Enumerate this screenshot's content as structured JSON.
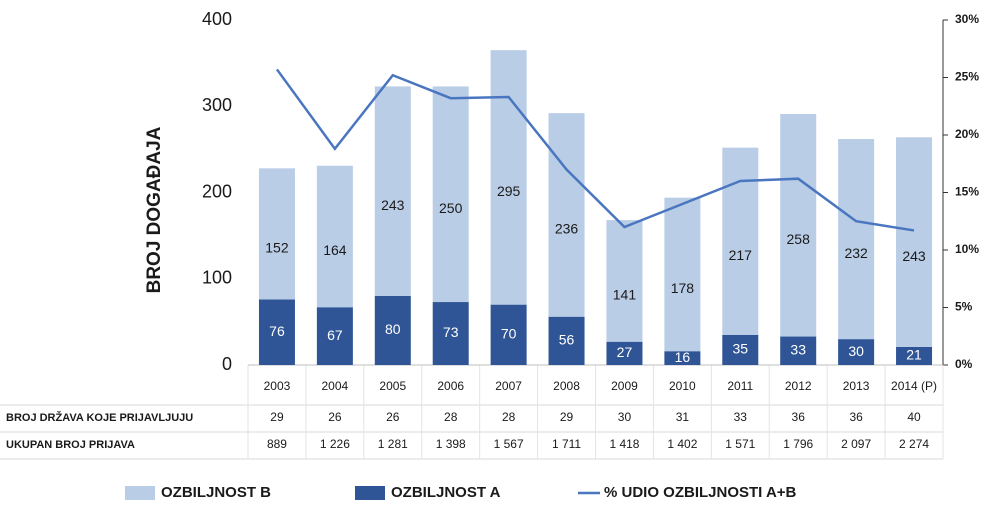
{
  "chart_data": {
    "type": "stacked-bar-line",
    "y_label": "BROJ DOGAĐAJA",
    "categories": [
      "2003",
      "2004",
      "2005",
      "2006",
      "2007",
      "2008",
      "2009",
      "2010",
      "2011",
      "2012",
      "2013",
      "2014 (P)"
    ],
    "series": [
      {
        "name": "OZBILJNOST A",
        "color": "#2f5597",
        "values": [
          76,
          67,
          80,
          73,
          70,
          56,
          27,
          16,
          35,
          33,
          30,
          21
        ]
      },
      {
        "name": "OZBILJNOST B",
        "color": "#b9cde6",
        "values": [
          152,
          164,
          243,
          250,
          295,
          236,
          141,
          178,
          217,
          258,
          232,
          243
        ]
      },
      {
        "name": "% UDIO OZBILJNOSTI A+B",
        "color": "#4a76c0",
        "axis": "y2",
        "values": [
          25.7,
          18.8,
          25.2,
          23.2,
          23.3,
          17.0,
          12.0,
          14.0,
          16.0,
          16.2,
          12.5,
          11.7
        ]
      }
    ],
    "ylim": [
      0,
      400
    ],
    "yticks": [
      0,
      100,
      200,
      300,
      400
    ],
    "y2lim": [
      0,
      30
    ],
    "y2ticks": [
      {
        "value": 0,
        "label": "0%"
      },
      {
        "value": 5,
        "label": "5%"
      },
      {
        "value": 10,
        "label": "10%"
      },
      {
        "value": 15,
        "label": "15%"
      },
      {
        "value": 20,
        "label": "20%"
      },
      {
        "value": 25,
        "label": "25%"
      },
      {
        "value": 30,
        "label": "30%"
      }
    ],
    "legend_order": [
      1,
      0,
      2
    ],
    "table": {
      "rows": [
        {
          "label": "BROJ DRŽAVA KOJE PRIJAVLJUJU",
          "values": [
            29,
            26,
            26,
            28,
            28,
            29,
            30,
            31,
            33,
            36,
            36,
            40
          ]
        },
        {
          "label": "UKUPAN BROJ PRIJAVA",
          "values": [
            "889",
            "1 226",
            "1 281",
            "1 398",
            "1 567",
            "1 711",
            "1 418",
            "1 402",
            "1 571",
            "1 796",
            "2 097",
            "2 274"
          ]
        }
      ]
    }
  }
}
